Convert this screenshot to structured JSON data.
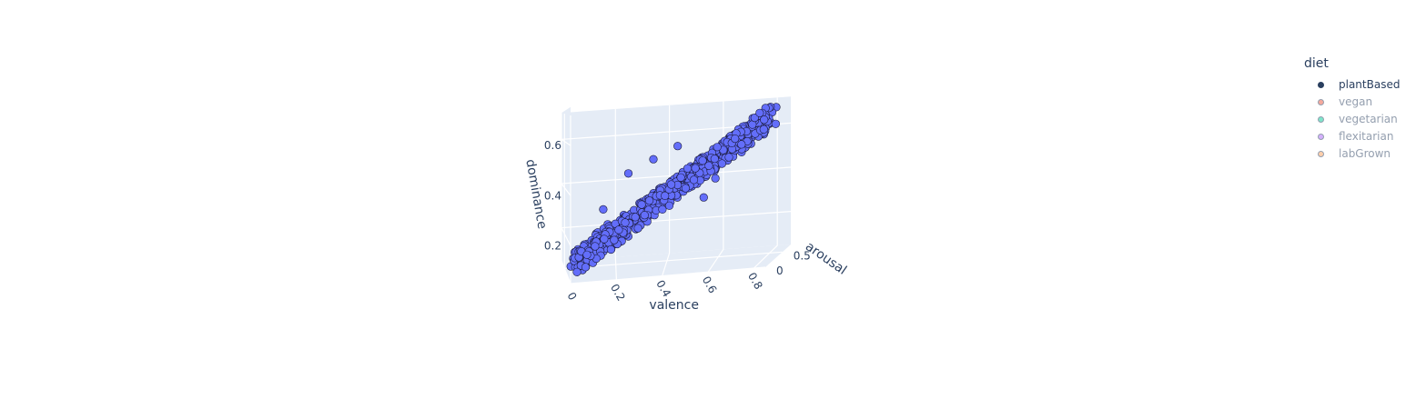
{
  "chart_data": {
    "type": "scatter3d",
    "title": "",
    "axes": {
      "x": {
        "label": "valence",
        "ticks": [
          "0",
          "0.2",
          "0.4",
          "0.6",
          "0.8"
        ],
        "tick_values": [
          0,
          0.2,
          0.4,
          0.6,
          0.8
        ],
        "range": [
          0,
          0.85
        ]
      },
      "y": {
        "label": "arousal",
        "ticks": [
          "0",
          "0.5"
        ],
        "tick_values": [
          0,
          0.5
        ],
        "range": [
          0,
          0.75
        ]
      },
      "z": {
        "label": "dominance",
        "ticks": [
          "0.2",
          "0.4",
          "0.6"
        ],
        "tick_values": [
          0.2,
          0.4,
          0.6
        ],
        "range": [
          0.05,
          0.72
        ]
      }
    },
    "grid": true,
    "legend": {
      "title": "diet",
      "position": "top-right",
      "items": [
        {
          "label": "plantBased",
          "color": "#636efa",
          "visible": true
        },
        {
          "label": "vegan",
          "color": "#ef553b",
          "visible": false
        },
        {
          "label": "vegetarian",
          "color": "#00cc96",
          "visible": false
        },
        {
          "label": "flexitarian",
          "color": "#ab63fa",
          "visible": false
        },
        {
          "label": "labGrown",
          "color": "#ffa15a",
          "visible": false
        }
      ]
    },
    "series": [
      {
        "name": "plantBased",
        "color": "#636efa",
        "points": [
          [
            0.02,
            0.4,
            0.07
          ],
          [
            0.05,
            0.33,
            0.11
          ],
          [
            0.07,
            0.36,
            0.12
          ],
          [
            0.09,
            0.29,
            0.14
          ],
          [
            0.1,
            0.44,
            0.15
          ],
          [
            0.12,
            0.38,
            0.16
          ],
          [
            0.13,
            0.31,
            0.17
          ],
          [
            0.15,
            0.35,
            0.18
          ],
          [
            0.16,
            0.42,
            0.19
          ],
          [
            0.18,
            0.34,
            0.2
          ],
          [
            0.19,
            0.28,
            0.21
          ],
          [
            0.2,
            0.46,
            0.22
          ],
          [
            0.22,
            0.37,
            0.23
          ],
          [
            0.23,
            0.32,
            0.24
          ],
          [
            0.24,
            0.4,
            0.25
          ],
          [
            0.26,
            0.36,
            0.26
          ],
          [
            0.27,
            0.3,
            0.27
          ],
          [
            0.28,
            0.44,
            0.28
          ],
          [
            0.3,
            0.38,
            0.29
          ],
          [
            0.31,
            0.33,
            0.3
          ],
          [
            0.32,
            0.41,
            0.31
          ],
          [
            0.34,
            0.35,
            0.32
          ],
          [
            0.35,
            0.29,
            0.33
          ],
          [
            0.36,
            0.45,
            0.34
          ],
          [
            0.38,
            0.39,
            0.35
          ],
          [
            0.39,
            0.32,
            0.36
          ],
          [
            0.4,
            0.42,
            0.37
          ],
          [
            0.42,
            0.36,
            0.38
          ],
          [
            0.43,
            0.3,
            0.39
          ],
          [
            0.44,
            0.47,
            0.4
          ],
          [
            0.46,
            0.4,
            0.41
          ],
          [
            0.47,
            0.34,
            0.42
          ],
          [
            0.48,
            0.43,
            0.43
          ],
          [
            0.5,
            0.37,
            0.44
          ],
          [
            0.51,
            0.31,
            0.45
          ],
          [
            0.52,
            0.46,
            0.46
          ],
          [
            0.54,
            0.41,
            0.47
          ],
          [
            0.55,
            0.35,
            0.48
          ],
          [
            0.56,
            0.44,
            0.49
          ],
          [
            0.58,
            0.38,
            0.5
          ],
          [
            0.59,
            0.32,
            0.51
          ],
          [
            0.6,
            0.48,
            0.52
          ],
          [
            0.62,
            0.42,
            0.53
          ],
          [
            0.63,
            0.36,
            0.54
          ],
          [
            0.64,
            0.45,
            0.55
          ],
          [
            0.66,
            0.39,
            0.56
          ],
          [
            0.67,
            0.34,
            0.57
          ],
          [
            0.68,
            0.49,
            0.58
          ],
          [
            0.7,
            0.43,
            0.59
          ],
          [
            0.71,
            0.37,
            0.6
          ],
          [
            0.72,
            0.46,
            0.61
          ],
          [
            0.74,
            0.4,
            0.62
          ],
          [
            0.76,
            0.44,
            0.63
          ],
          [
            0.78,
            0.39,
            0.64
          ],
          [
            0.8,
            0.45,
            0.65
          ],
          [
            0.82,
            0.42,
            0.66
          ],
          [
            0.84,
            0.38,
            0.61
          ],
          [
            0.83,
            0.47,
            0.68
          ],
          [
            0.25,
            0.35,
            0.45
          ],
          [
            0.55,
            0.4,
            0.32
          ],
          [
            0.35,
            0.38,
            0.5
          ],
          [
            0.6,
            0.36,
            0.4
          ],
          [
            0.15,
            0.42,
            0.3
          ],
          [
            0.45,
            0.33,
            0.55
          ],
          [
            0.7,
            0.41,
            0.5
          ]
        ]
      }
    ]
  },
  "legend": {
    "title": "diet",
    "items": [
      {
        "label": "plantBased"
      },
      {
        "label": "vegan"
      },
      {
        "label": "vegetarian"
      },
      {
        "label": "flexitarian"
      },
      {
        "label": "labGrown"
      }
    ]
  }
}
